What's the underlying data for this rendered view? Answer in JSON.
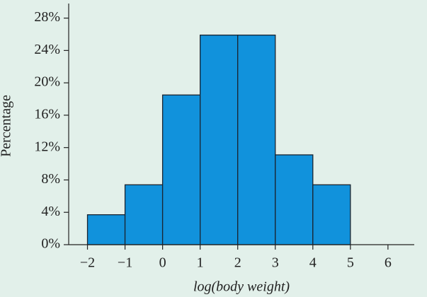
{
  "chart_data": {
    "type": "histogram",
    "x_label": "log(body weight)",
    "y_label": "Percentage",
    "bins": [
      -2,
      -1,
      0,
      1,
      2,
      3,
      4,
      5
    ],
    "values": [
      3.7,
      7.4,
      18.5,
      25.9,
      25.9,
      11.1,
      7.4
    ],
    "color": "#1192dc",
    "xlim": [
      -2.5,
      6.7
    ],
    "xticks": [
      {
        "value": -2,
        "label": "−2"
      },
      {
        "value": -1,
        "label": "−1"
      },
      0,
      1,
      2,
      3,
      4,
      5,
      6
    ],
    "ylim": [
      0,
      29.8
    ],
    "yticks": [
      {
        "value": 0,
        "label": "0%"
      },
      {
        "value": 4,
        "label": "4%"
      },
      {
        "value": 8,
        "label": "8%"
      },
      {
        "value": 12,
        "label": "12%"
      },
      {
        "value": 16,
        "label": "16%"
      },
      {
        "value": 20,
        "label": "20%"
      },
      {
        "value": 24,
        "label": "24%"
      },
      {
        "value": 28,
        "label": "28%"
      }
    ]
  }
}
